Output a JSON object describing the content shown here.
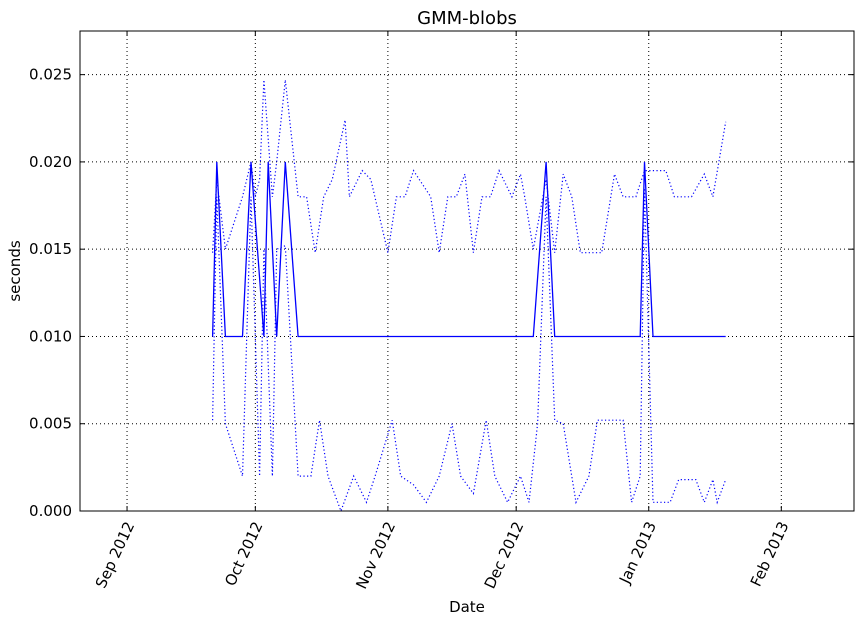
{
  "chart_data": {
    "type": "line",
    "title": "GMM-blobs",
    "xlabel": "Date",
    "ylabel": "seconds",
    "xlim": [
      "2012-08-21",
      "2013-02-18"
    ],
    "ylim": [
      0,
      0.0275
    ],
    "grid": true,
    "y_ticks": [
      {
        "value": 0.0,
        "label": "0.000"
      },
      {
        "value": 0.005,
        "label": "0.005"
      },
      {
        "value": 0.01,
        "label": "0.010"
      },
      {
        "value": 0.015,
        "label": "0.015"
      },
      {
        "value": 0.02,
        "label": "0.020"
      },
      {
        "value": 0.025,
        "label": "0.025"
      }
    ],
    "x_ticks": [
      {
        "value": "2012-09-01",
        "label": "Sep 2012"
      },
      {
        "value": "2012-10-01",
        "label": "Oct 2012"
      },
      {
        "value": "2012-11-01",
        "label": "Nov 2012"
      },
      {
        "value": "2012-12-01",
        "label": "Dec 2012"
      },
      {
        "value": "2013-01-01",
        "label": "Jan 2013"
      },
      {
        "value": "2013-02-01",
        "label": "Feb 2013"
      }
    ],
    "series": [
      {
        "style": "solid",
        "color": "#0000ff",
        "points": [
          [
            "2012-09-21",
            0.01
          ],
          [
            "2012-09-22",
            0.02
          ],
          [
            "2012-09-24",
            0.01
          ],
          [
            "2012-09-28",
            0.01
          ],
          [
            "2012-09-30",
            0.02
          ],
          [
            "2012-10-03",
            0.01
          ],
          [
            "2012-10-04",
            0.02
          ],
          [
            "2012-10-06",
            0.01
          ],
          [
            "2012-10-08",
            0.02
          ],
          [
            "2012-10-11",
            0.01
          ],
          [
            "2012-12-05",
            0.01
          ],
          [
            "2012-12-08",
            0.02
          ],
          [
            "2012-12-10",
            0.01
          ],
          [
            "2012-12-30",
            0.01
          ],
          [
            "2012-12-31",
            0.02
          ],
          [
            "2013-01-02",
            0.01
          ],
          [
            "2013-01-19",
            0.01
          ]
        ]
      },
      {
        "style": "dotted",
        "color": "#0000ff",
        "points": [
          [
            "2012-09-21",
            0.0148
          ],
          [
            "2012-09-22",
            0.019
          ],
          [
            "2012-09-24",
            0.015
          ],
          [
            "2012-09-28",
            0.018
          ],
          [
            "2012-09-30",
            0.02
          ],
          [
            "2012-10-01",
            0.018
          ],
          [
            "2012-10-02",
            0.019
          ],
          [
            "2012-10-03",
            0.0247
          ],
          [
            "2012-10-05",
            0.018
          ],
          [
            "2012-10-06",
            0.02
          ],
          [
            "2012-10-08",
            0.0247
          ],
          [
            "2012-10-11",
            0.018
          ],
          [
            "2012-10-13",
            0.018
          ],
          [
            "2012-10-15",
            0.0148
          ],
          [
            "2012-10-17",
            0.018
          ],
          [
            "2012-10-19",
            0.019
          ],
          [
            "2012-10-22",
            0.0224
          ],
          [
            "2012-10-23",
            0.018
          ],
          [
            "2012-10-26",
            0.0195
          ],
          [
            "2012-10-28",
            0.019
          ],
          [
            "2012-11-01",
            0.0148
          ],
          [
            "2012-11-03",
            0.018
          ],
          [
            "2012-11-05",
            0.018
          ],
          [
            "2012-11-07",
            0.0195
          ],
          [
            "2012-11-11",
            0.018
          ],
          [
            "2012-11-13",
            0.0148
          ],
          [
            "2012-11-15",
            0.018
          ],
          [
            "2012-11-17",
            0.018
          ],
          [
            "2012-11-19",
            0.0193
          ],
          [
            "2012-11-21",
            0.0148
          ],
          [
            "2012-11-23",
            0.018
          ],
          [
            "2012-11-25",
            0.018
          ],
          [
            "2012-11-27",
            0.0195
          ],
          [
            "2012-11-29",
            0.0185
          ],
          [
            "2012-11-30",
            0.018
          ],
          [
            "2012-12-02",
            0.0193
          ],
          [
            "2012-12-03",
            0.018
          ],
          [
            "2012-12-05",
            0.015
          ],
          [
            "2012-12-08",
            0.019
          ],
          [
            "2012-12-10",
            0.0148
          ],
          [
            "2012-12-12",
            0.0193
          ],
          [
            "2012-12-14",
            0.018
          ],
          [
            "2012-12-16",
            0.0148
          ],
          [
            "2012-12-21",
            0.0148
          ],
          [
            "2012-12-24",
            0.0193
          ],
          [
            "2012-12-26",
            0.018
          ],
          [
            "2012-12-29",
            0.018
          ],
          [
            "2012-12-31",
            0.0195
          ],
          [
            "2013-01-05",
            0.0195
          ],
          [
            "2013-01-07",
            0.018
          ],
          [
            "2013-01-11",
            0.018
          ],
          [
            "2013-01-14",
            0.0193
          ],
          [
            "2013-01-16",
            0.018
          ],
          [
            "2013-01-19",
            0.0223
          ]
        ]
      },
      {
        "style": "dotted",
        "color": "#0000ff",
        "points": [
          [
            "2012-09-21",
            0.0052
          ],
          [
            "2012-09-22",
            0.018
          ],
          [
            "2012-09-24",
            0.005
          ],
          [
            "2012-09-28",
            0.002
          ],
          [
            "2012-09-30",
            0.018
          ],
          [
            "2012-10-02",
            0.002
          ],
          [
            "2012-10-03",
            0.015
          ],
          [
            "2012-10-05",
            0.002
          ],
          [
            "2012-10-06",
            0.015
          ],
          [
            "2012-10-08",
            0.0152
          ],
          [
            "2012-10-11",
            0.002
          ],
          [
            "2012-10-14",
            0.002
          ],
          [
            "2012-10-16",
            0.0052
          ],
          [
            "2012-10-18",
            0.002
          ],
          [
            "2012-10-21",
            0.0
          ],
          [
            "2012-10-24",
            0.002
          ],
          [
            "2012-10-27",
            0.0005
          ],
          [
            "2012-10-29",
            0.002
          ],
          [
            "2012-11-02",
            0.0052
          ],
          [
            "2012-11-04",
            0.002
          ],
          [
            "2012-11-07",
            0.0015
          ],
          [
            "2012-11-10",
            0.0005
          ],
          [
            "2012-11-13",
            0.002
          ],
          [
            "2012-11-16",
            0.005
          ],
          [
            "2012-11-18",
            0.002
          ],
          [
            "2012-11-21",
            0.001
          ],
          [
            "2012-11-24",
            0.0052
          ],
          [
            "2012-11-26",
            0.002
          ],
          [
            "2012-11-29",
            0.0005
          ],
          [
            "2012-12-02",
            0.002
          ],
          [
            "2012-12-04",
            0.0005
          ],
          [
            "2012-12-06",
            0.005
          ],
          [
            "2012-12-08",
            0.018
          ],
          [
            "2012-12-10",
            0.0052
          ],
          [
            "2012-12-12",
            0.005
          ],
          [
            "2012-12-15",
            0.0005
          ],
          [
            "2012-12-18",
            0.002
          ],
          [
            "2012-12-20",
            0.0052
          ],
          [
            "2012-12-26",
            0.0052
          ],
          [
            "2012-12-28",
            0.0005
          ],
          [
            "2012-12-30",
            0.002
          ],
          [
            "2012-12-31",
            0.0185
          ],
          [
            "2013-01-02",
            0.0005
          ],
          [
            "2013-01-06",
            0.0005
          ],
          [
            "2013-01-08",
            0.0018
          ],
          [
            "2013-01-12",
            0.0018
          ],
          [
            "2013-01-14",
            0.0005
          ],
          [
            "2013-01-16",
            0.0018
          ],
          [
            "2013-01-17",
            0.0005
          ],
          [
            "2013-01-19",
            0.0018
          ]
        ]
      }
    ]
  }
}
